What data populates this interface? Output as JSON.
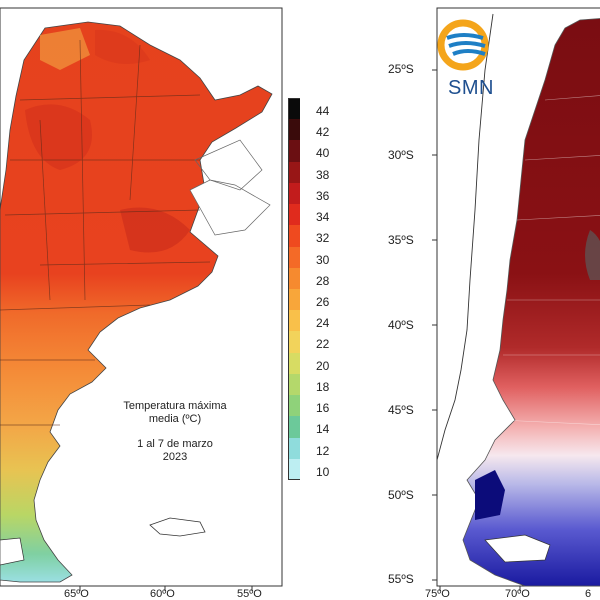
{
  "left_map": {
    "caption": {
      "line1": "Temperatura máxima",
      "line2": "media (ºC)",
      "line3": "1 al 7 de marzo",
      "line4": "2023"
    },
    "longitude_labels": [
      "65ºO",
      "60ºO",
      "55ºO"
    ],
    "legend": {
      "ticks": [
        "44",
        "42",
        "40",
        "38",
        "36",
        "34",
        "32",
        "30",
        "28",
        "26",
        "24",
        "22",
        "20",
        "18",
        "16",
        "14",
        "12",
        "10"
      ],
      "colors": [
        "#0a0a0a",
        "#3a0b0b",
        "#6b0f12",
        "#981616",
        "#c21c1c",
        "#e02b1d",
        "#ef4a1f",
        "#f46a27",
        "#f68a2f",
        "#f8a63a",
        "#f9c04a",
        "#f2d35b",
        "#d7dc63",
        "#b4d86b",
        "#8fd27a",
        "#6cc99a",
        "#8fdcdc",
        "#bdeef2"
      ]
    }
  },
  "right_map": {
    "logo_text": "SMN",
    "latitude_labels": [
      "25ºS",
      "30ºS",
      "35ºS",
      "40ºS",
      "45ºS",
      "50ºS",
      "55ºS"
    ],
    "longitude_labels": [
      "75ºO",
      "70ºO",
      "6"
    ]
  }
}
